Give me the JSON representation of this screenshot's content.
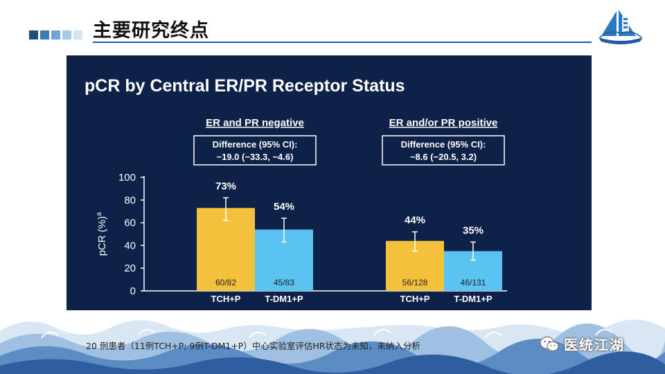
{
  "header": {
    "title": "主要研究终点",
    "square_colors": [
      "#1f4e79",
      "#3d7bb6",
      "#6fa6d6",
      "#a6c9e8",
      "#d3e4f3"
    ]
  },
  "chart_data": {
    "type": "bar",
    "title": "pCR by Central ER/PR Receptor Status",
    "ylabel": "pCR (%)",
    "ylabel_superscript": "a",
    "ylim": [
      0,
      100
    ],
    "yticks": [
      0,
      20,
      40,
      60,
      80,
      100
    ],
    "colors": {
      "TCH+P": "#f4c13c",
      "T-DM1+P": "#5bc3f0"
    },
    "groups": [
      {
        "label": "ER and PR negative",
        "difference_line1": "Difference (95% CI):",
        "difference_line2": "−19.0 (−33.3, −4.6)",
        "bars": [
          {
            "name": "TCH+P",
            "value": 73,
            "value_label": "73%",
            "n_label": "60/82",
            "err_low": 62,
            "err_high": 82
          },
          {
            "name": "T-DM1+P",
            "value": 54,
            "value_label": "54%",
            "n_label": "45/83",
            "err_low": 43,
            "err_high": 64
          }
        ]
      },
      {
        "label": "ER and/or PR positive",
        "difference_line1": "Difference (95% CI):",
        "difference_line2": "−8.6 (−20.5, 3.2)",
        "bars": [
          {
            "name": "TCH+P",
            "value": 44,
            "value_label": "44%",
            "n_label": "56/128",
            "err_low": 35,
            "err_high": 52
          },
          {
            "name": "T-DM1+P",
            "value": 35,
            "value_label": "35%",
            "n_label": "46/131",
            "err_low": 27,
            "err_high": 43
          }
        ]
      }
    ]
  },
  "footnote": "20 例患者（11例TCH+P; 9例T-DM1+P）中心实验室评估HR状态为未知，未纳入分析",
  "watermark": {
    "text": "医统江湖",
    "icon": "wechat-icon"
  }
}
